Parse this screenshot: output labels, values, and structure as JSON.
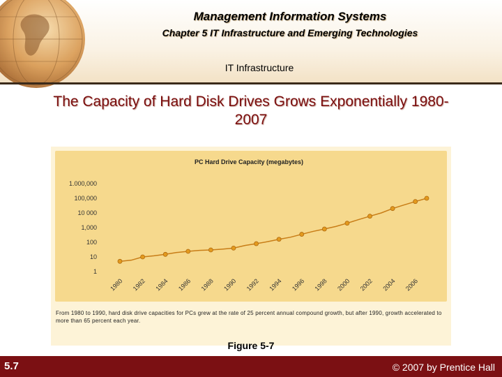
{
  "header": {
    "course_title": "Management Information Systems",
    "chapter_title": "Chapter 5 IT Infrastructure and Emerging Technologies",
    "section_title": "IT Infrastructure"
  },
  "slide_title": "The Capacity of Hard Disk Drives Grows Exponentially 1980-2007",
  "chart_data": {
    "type": "line",
    "title": "PC  Hard  Drive  Capacity  (megabytes)",
    "scale": "log",
    "categories": [
      "1980",
      "1982",
      "1984",
      "1986",
      "1988",
      "1990",
      "1992",
      "1994",
      "1996",
      "1998",
      "2000",
      "2002",
      "2004",
      "2006"
    ],
    "x_ticks": [
      "1980",
      "1982",
      "1984",
      "1986",
      "1988",
      "1990",
      "1992",
      "1994",
      "1996",
      "1998",
      "2000",
      "2002",
      "2004",
      "2006"
    ],
    "y_ticks": [
      "1.000,000",
      "100,000",
      "10 000",
      "1,000",
      "100",
      "10",
      "1"
    ],
    "series": [
      {
        "x": [
          1980,
          1981,
          1982,
          1983,
          1984,
          1985,
          1986,
          1987,
          1988,
          1989,
          1990,
          1991,
          1992,
          1993,
          1994,
          1995,
          1996,
          1997,
          1998,
          1999,
          2000,
          2001,
          2002,
          2003,
          2004,
          2005,
          2006,
          2007
        ],
        "values": [
          5,
          6,
          10,
          12,
          15,
          20,
          24,
          28,
          30,
          34,
          40,
          60,
          80,
          110,
          160,
          220,
          350,
          550,
          800,
          1200,
          2000,
          3500,
          6000,
          10000,
          20000,
          35000,
          60000,
          100000
        ]
      }
    ],
    "ylim": [
      1,
      1000000
    ],
    "grid": false,
    "legend": "none"
  },
  "caption": "From 1980 to 1990, hard disk drive capacities for PCs grew at the rate of 25 percent annual compound growth, but after 1990, growth accelerated to more than 65 percent each year.",
  "figure_label": "Figure 5-7",
  "footer": {
    "slide_number": "5.7",
    "copyright": "© 2007 by Prentice Hall"
  },
  "colors": {
    "title_red": "#7a0d0d",
    "footer_bg": "#7b1013",
    "chart_bg": "#fdf3d7",
    "plot_bg": "#f6d98d",
    "line": "#c87d17",
    "marker": "#e39a1e"
  }
}
